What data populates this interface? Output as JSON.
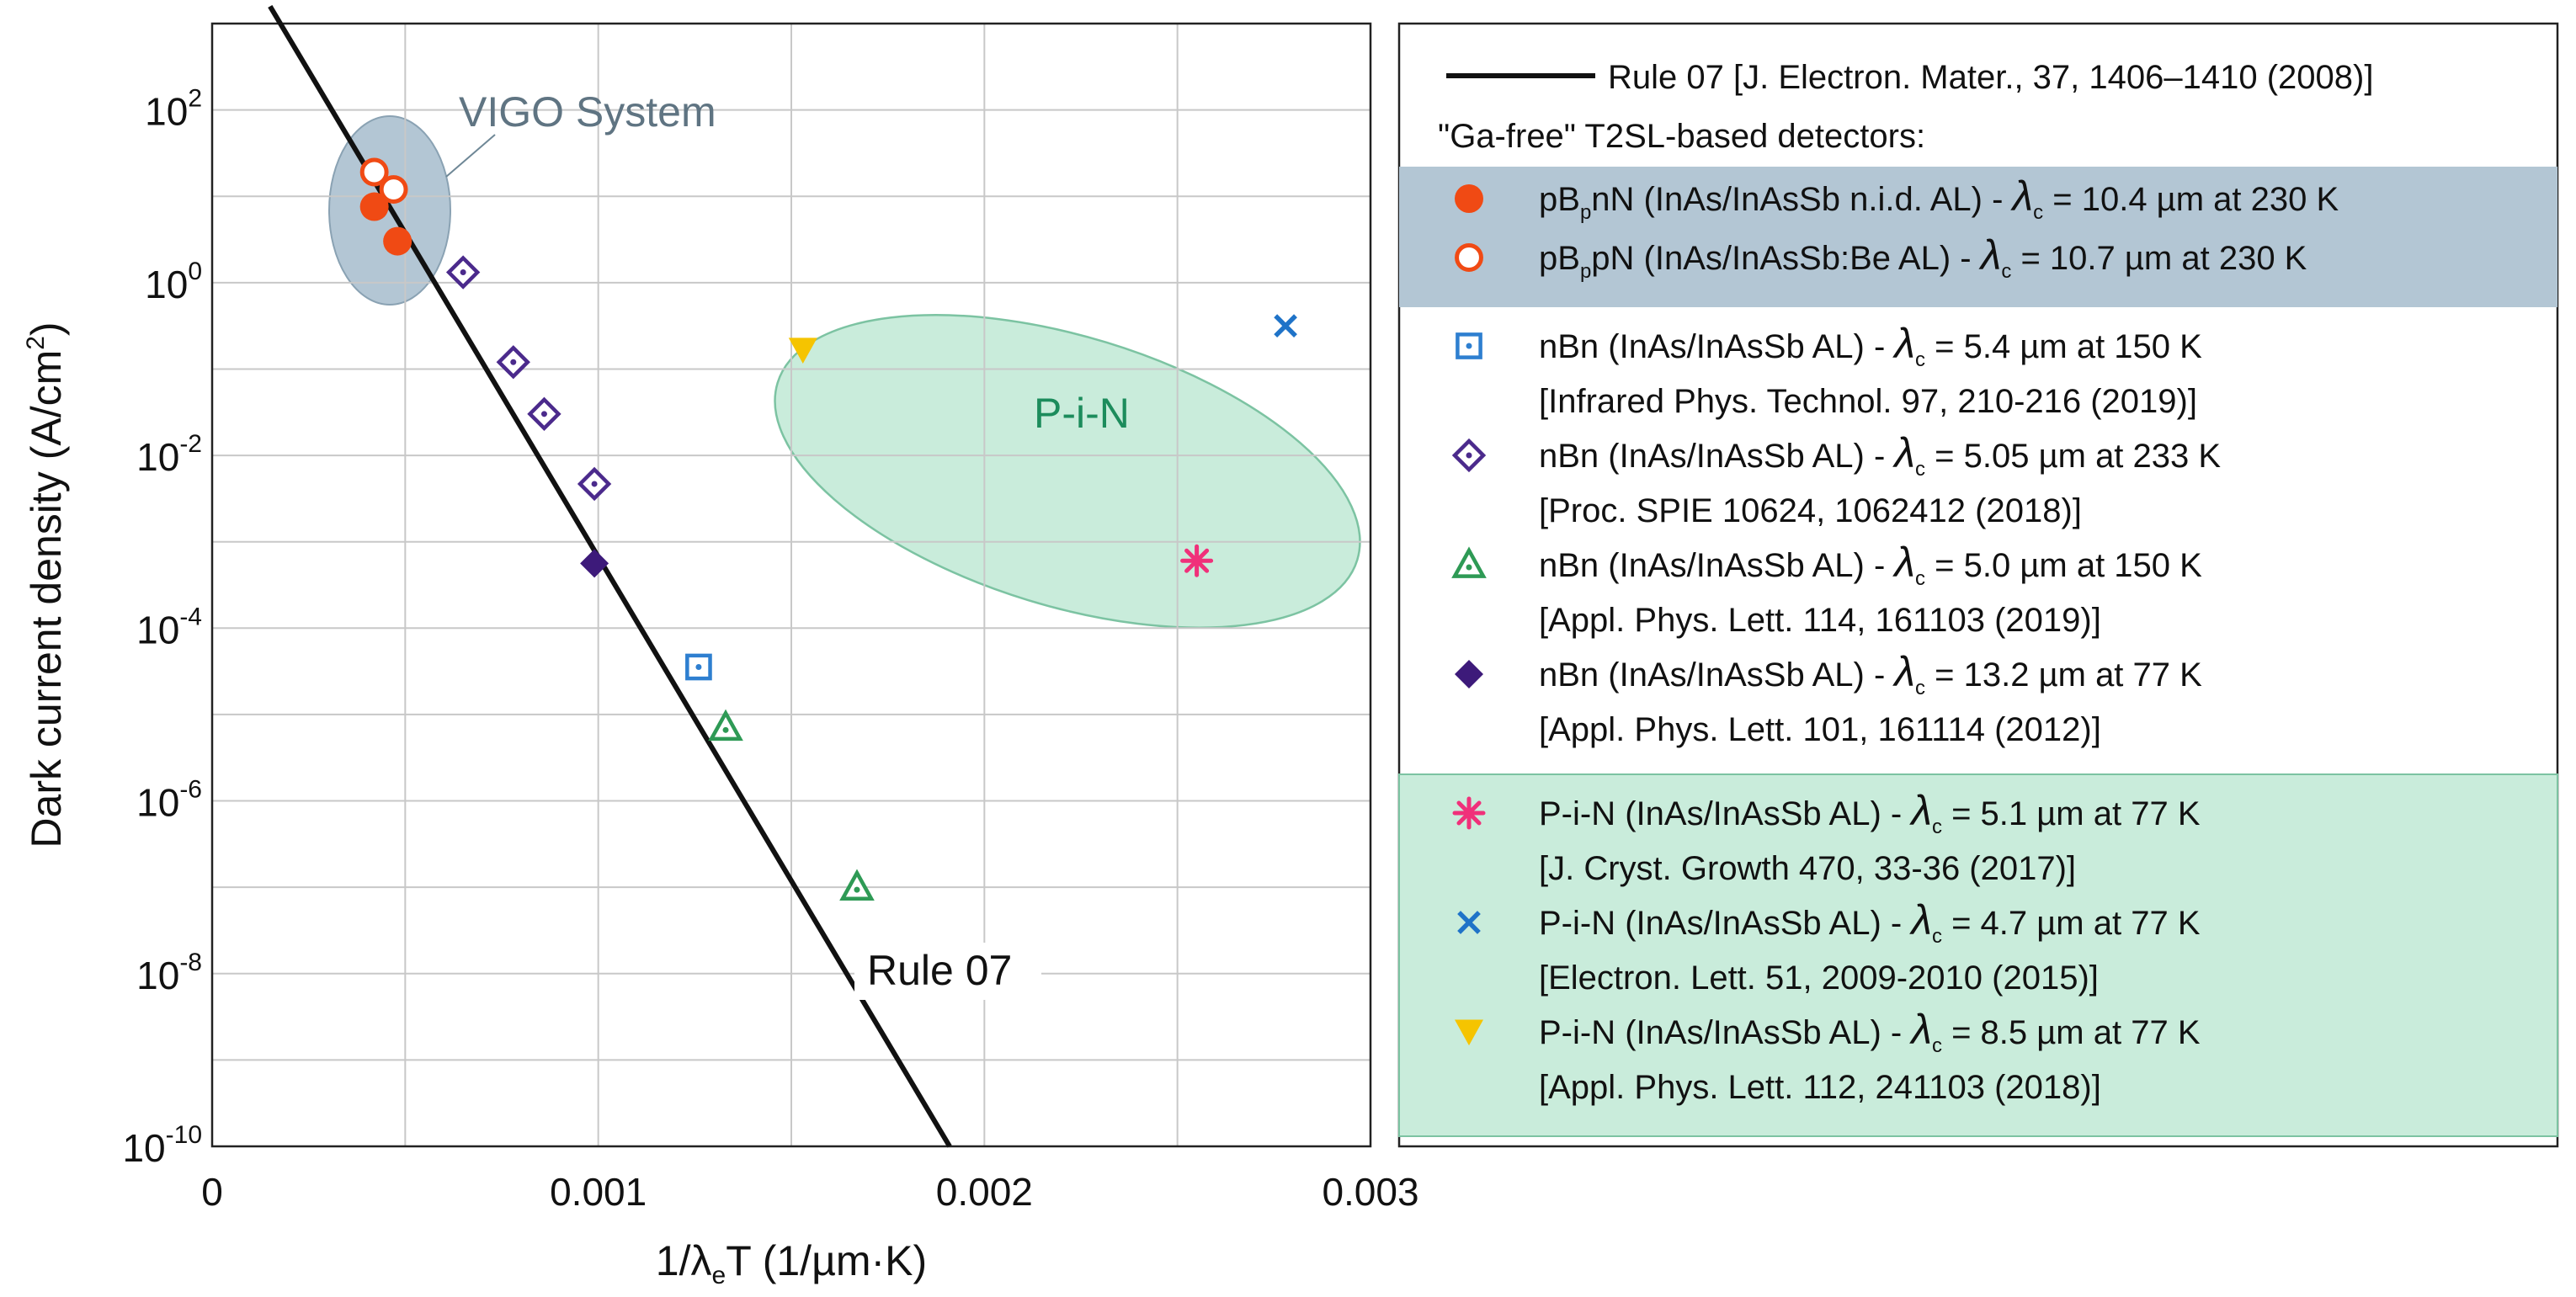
{
  "chart_data": {
    "type": "scatter",
    "xlabel": "1/λₑT (1/µm·K)",
    "ylabel": "Dark current density (A/cm²)",
    "xlim": [
      0,
      0.003
    ],
    "ylim_log10": [
      -10,
      3
    ],
    "x_ticks": [
      {
        "value": 0,
        "label": "0"
      },
      {
        "value": 0.001,
        "label": "0.001"
      },
      {
        "value": 0.002,
        "label": "0.002"
      },
      {
        "value": 0.003,
        "label": "0.003"
      }
    ],
    "y_ticks": [
      {
        "exp": 2,
        "base": "10",
        "sup": "2"
      },
      {
        "exp": 0,
        "base": "10",
        "sup": "0"
      },
      {
        "exp": -2,
        "base": "10",
        "sup": "-2"
      },
      {
        "exp": -4,
        "base": "10",
        "sup": "-4"
      },
      {
        "exp": -6,
        "base": "10",
        "sup": "-6"
      },
      {
        "exp": -8,
        "base": "10",
        "sup": "-8"
      },
      {
        "exp": -10,
        "base": "10",
        "sup": "-10"
      }
    ],
    "rule07_line": {
      "label": "Rule 07",
      "points": [
        [
          0.00015,
          3.2
        ],
        [
          0.00191,
          -10.0
        ]
      ]
    },
    "regions": [
      {
        "label": "VIGO System",
        "color": "#aec3d1"
      },
      {
        "label": "P-i-N",
        "color": "#a9e0c8"
      }
    ],
    "series": [
      {
        "name": "pBpnN n.i.d. AL",
        "marker": "filled-circle",
        "color": "#f04a14",
        "points": [
          [
            0.00042,
            0.88
          ],
          [
            0.00048,
            0.48
          ]
        ]
      },
      {
        "name": "pBpN Be AL",
        "marker": "open-circle",
        "color": "#f04a14",
        "points": [
          [
            0.00042,
            1.28
          ],
          [
            0.00047,
            1.08
          ]
        ]
      },
      {
        "name": "nBn 5.4um 150K",
        "marker": "square-dot",
        "color": "#2e7fd0",
        "points": [
          [
            0.00126,
            -4.45
          ]
        ]
      },
      {
        "name": "nBn 5.05um 233K",
        "marker": "diamond-dot",
        "color": "#4b2a8c",
        "points": [
          [
            0.00065,
            0.12
          ],
          [
            0.00078,
            -0.92
          ],
          [
            0.00086,
            -1.52
          ],
          [
            0.00099,
            -2.33
          ]
        ]
      },
      {
        "name": "nBn 5.0um 150K",
        "marker": "triangle-dot",
        "color": "#2e9a55",
        "points": [
          [
            0.00133,
            -5.15
          ],
          [
            0.00167,
            -7.0
          ]
        ]
      },
      {
        "name": "nBn 13.2um 77K",
        "marker": "filled-diamond",
        "color": "#3d1a7a",
        "points": [
          [
            0.00099,
            -3.25
          ]
        ]
      },
      {
        "name": "P-i-N 5.1um 77K",
        "marker": "asterisk",
        "color": "#f0307a",
        "points": [
          [
            0.00255,
            -3.22
          ]
        ]
      },
      {
        "name": "P-i-N 4.7um 77K",
        "marker": "x",
        "color": "#1f73c8",
        "points": [
          [
            0.00278,
            -0.5
          ]
        ]
      },
      {
        "name": "P-i-N 8.5um 77K",
        "marker": "filled-down-triangle",
        "color": "#f5c400",
        "points": [
          [
            0.00153,
            -0.78
          ]
        ]
      }
    ]
  },
  "legend": {
    "rule07_entry": "Rule 07 [J. Electron. Mater., 37, 1406–1410 (2008)]",
    "group_heading": "\"Ga-free\" T2SL-based detectors:",
    "lambda": "λ",
    "lambda_sub": "c",
    "items": [
      {
        "pre": "pB",
        "pre_sub": "p",
        "pre2": "nN (InAs/InAsSb n.i.d. AL) - ",
        "post": " = 10.4 µm at 230 K",
        "ref": ""
      },
      {
        "pre": "pB",
        "pre_sub": "p",
        "pre2": "pN (InAs/InAsSb:Be AL) - ",
        "post": " = 10.7 µm at 230 K",
        "ref": ""
      },
      {
        "pre": "nBn (InAs/InAsSb AL) - ",
        "pre_sub": "",
        "pre2": "",
        "post": " = 5.4 µm at 150 K",
        "ref": "[Infrared Phys. Technol. 97, 210-216 (2019)]"
      },
      {
        "pre": "nBn (InAs/InAsSb AL) - ",
        "pre_sub": "",
        "pre2": "",
        "post": " = 5.05 µm at 233 K",
        "ref": "[Proc. SPIE 10624, 1062412 (2018)]"
      },
      {
        "pre": "nBn (InAs/InAsSb AL) - ",
        "pre_sub": "",
        "pre2": "",
        "post": " = 5.0 µm at 150 K",
        "ref": "[Appl. Phys. Lett. 114, 161103 (2019)]"
      },
      {
        "pre": "nBn (InAs/InAsSb AL) - ",
        "pre_sub": "",
        "pre2": "",
        "post": " = 13.2 µm at 77 K",
        "ref": "[Appl. Phys. Lett. 101, 161114 (2012)]"
      },
      {
        "pre": "P-i-N (InAs/InAsSb AL) - ",
        "pre_sub": "",
        "pre2": "",
        "post": " = 5.1 µm at 77 K",
        "ref": "[J. Cryst. Growth 470, 33-36 (2017)]"
      },
      {
        "pre": "P-i-N (InAs/InAsSb AL) - ",
        "pre_sub": "",
        "pre2": "",
        "post": " = 4.7 µm at 77 K",
        "ref": "[Electron. Lett. 51, 2009-2010 (2015)]"
      },
      {
        "pre": "P-i-N (InAs/InAsSb AL) - ",
        "pre_sub": "",
        "pre2": "",
        "post": " = 8.5 µm at 77 K",
        "ref": "[Appl. Phys. Lett. 112, 241103 (2018)]"
      }
    ]
  }
}
